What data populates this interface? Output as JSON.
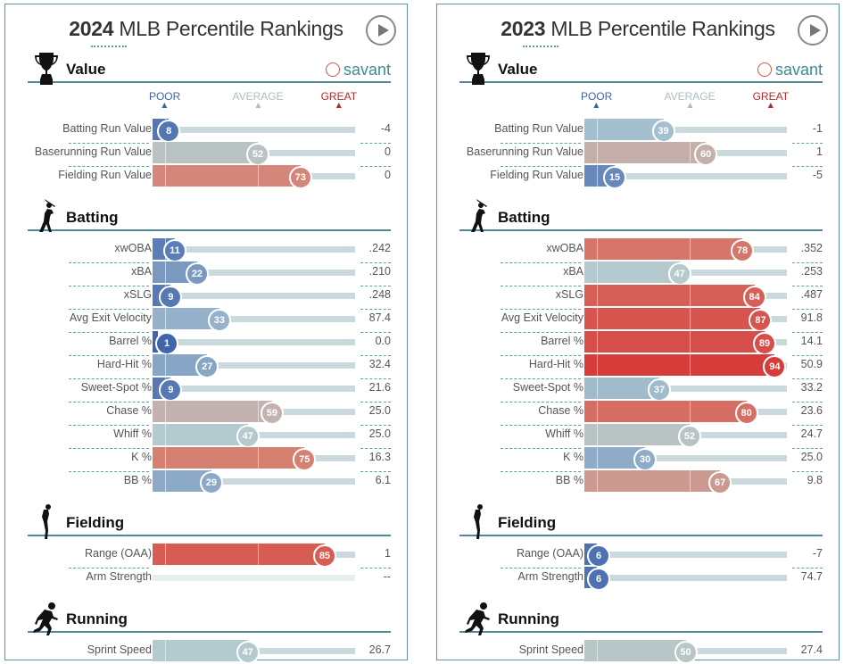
{
  "colors": {
    "poor": "#3d63ab",
    "average": "#b2b8bd",
    "great": "#d62728",
    "accent": "#3e8a94",
    "track": "#cad9dc"
  },
  "scale_labels": {
    "poor": "POOR",
    "average": "AVERAGE",
    "great": "GREAT"
  },
  "brand": "savant",
  "chart_data": [
    {
      "type": "bar",
      "title_year": "2024",
      "title_rest": " MLB Percentile Rankings",
      "xlim": [
        0,
        100
      ],
      "sections": [
        {
          "name": "Value",
          "icon": "trophy-icon",
          "metrics": [
            {
              "label": "Batting Run Value",
              "percentile": 8,
              "value": "-4"
            },
            {
              "label": "Baserunning Run Value",
              "percentile": 52,
              "value": "0"
            },
            {
              "label": "Fielding Run Value",
              "percentile": 73,
              "value": "0"
            }
          ]
        },
        {
          "name": "Batting",
          "icon": "batter-icon",
          "metrics": [
            {
              "label": "xwOBA",
              "percentile": 11,
              "value": ".242"
            },
            {
              "label": "xBA",
              "percentile": 22,
              "value": ".210"
            },
            {
              "label": "xSLG",
              "percentile": 9,
              "value": ".248"
            },
            {
              "label": "Avg Exit Velocity",
              "percentile": 33,
              "value": "87.4"
            },
            {
              "label": "Barrel %",
              "percentile": 1,
              "value": "0.0"
            },
            {
              "label": "Hard-Hit %",
              "percentile": 27,
              "value": "32.4"
            },
            {
              "label": "Sweet-Spot %",
              "percentile": 9,
              "value": "21.6"
            },
            {
              "label": "Chase %",
              "percentile": 59,
              "value": "25.0"
            },
            {
              "label": "Whiff %",
              "percentile": 47,
              "value": "25.0"
            },
            {
              "label": "K %",
              "percentile": 75,
              "value": "16.3"
            },
            {
              "label": "BB %",
              "percentile": 29,
              "value": "6.1"
            }
          ]
        },
        {
          "name": "Fielding",
          "icon": "fielder-icon",
          "metrics": [
            {
              "label": "Range (OAA)",
              "percentile": 85,
              "value": "1"
            },
            {
              "label": "Arm Strength",
              "percentile": null,
              "value": "--"
            }
          ]
        },
        {
          "name": "Running",
          "icon": "runner-icon",
          "metrics": [
            {
              "label": "Sprint Speed",
              "percentile": 47,
              "value": "26.7"
            }
          ]
        }
      ]
    },
    {
      "type": "bar",
      "title_year": "2023",
      "title_rest": " MLB Percentile Rankings",
      "xlim": [
        0,
        100
      ],
      "sections": [
        {
          "name": "Value",
          "icon": "trophy-icon",
          "metrics": [
            {
              "label": "Batting Run Value",
              "percentile": 39,
              "value": "-1"
            },
            {
              "label": "Baserunning Run Value",
              "percentile": 60,
              "value": "1"
            },
            {
              "label": "Fielding Run Value",
              "percentile": 15,
              "value": "-5"
            }
          ]
        },
        {
          "name": "Batting",
          "icon": "batter-icon",
          "metrics": [
            {
              "label": "xwOBA",
              "percentile": 78,
              "value": ".352"
            },
            {
              "label": "xBA",
              "percentile": 47,
              "value": ".253"
            },
            {
              "label": "xSLG",
              "percentile": 84,
              "value": ".487"
            },
            {
              "label": "Avg Exit Velocity",
              "percentile": 87,
              "value": "91.8"
            },
            {
              "label": "Barrel %",
              "percentile": 89,
              "value": "14.1"
            },
            {
              "label": "Hard-Hit %",
              "percentile": 94,
              "value": "50.9"
            },
            {
              "label": "Sweet-Spot %",
              "percentile": 37,
              "value": "33.2"
            },
            {
              "label": "Chase %",
              "percentile": 80,
              "value": "23.6"
            },
            {
              "label": "Whiff %",
              "percentile": 52,
              "value": "24.7"
            },
            {
              "label": "K %",
              "percentile": 30,
              "value": "25.0"
            },
            {
              "label": "BB %",
              "percentile": 67,
              "value": "9.8"
            }
          ]
        },
        {
          "name": "Fielding",
          "icon": "fielder-icon",
          "metrics": [
            {
              "label": "Range (OAA)",
              "percentile": 6,
              "value": "-7"
            },
            {
              "label": "Arm Strength",
              "percentile": 6,
              "value": "74.7"
            }
          ]
        },
        {
          "name": "Running",
          "icon": "runner-icon",
          "metrics": [
            {
              "label": "Sprint Speed",
              "percentile": 50,
              "value": "27.4"
            }
          ]
        }
      ]
    }
  ]
}
